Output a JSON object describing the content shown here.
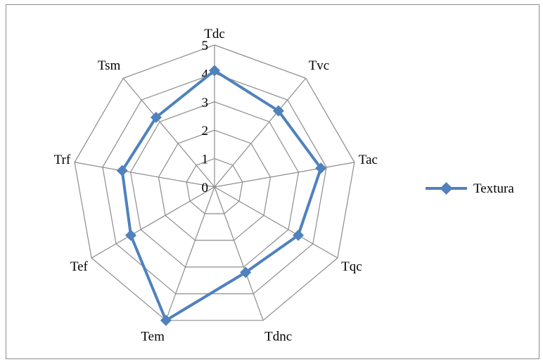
{
  "chart_data": {
    "type": "radar",
    "categories": [
      "Tdc",
      "Tvc",
      "Tac",
      "Tqc",
      "Tdnc",
      "Tem",
      "Tef",
      "Trf",
      "Tsm"
    ],
    "series": [
      {
        "name": "Textura",
        "values": [
          4.1,
          3.5,
          3.8,
          3.4,
          3.2,
          5.0,
          3.4,
          3.3,
          3.2
        ],
        "color": "#4f81bd"
      }
    ],
    "rlim": [
      0,
      5
    ],
    "ticks": [
      "0",
      "1",
      "2",
      "3",
      "4",
      "5"
    ],
    "grid": true,
    "legend": "right",
    "marker": "diamond"
  }
}
